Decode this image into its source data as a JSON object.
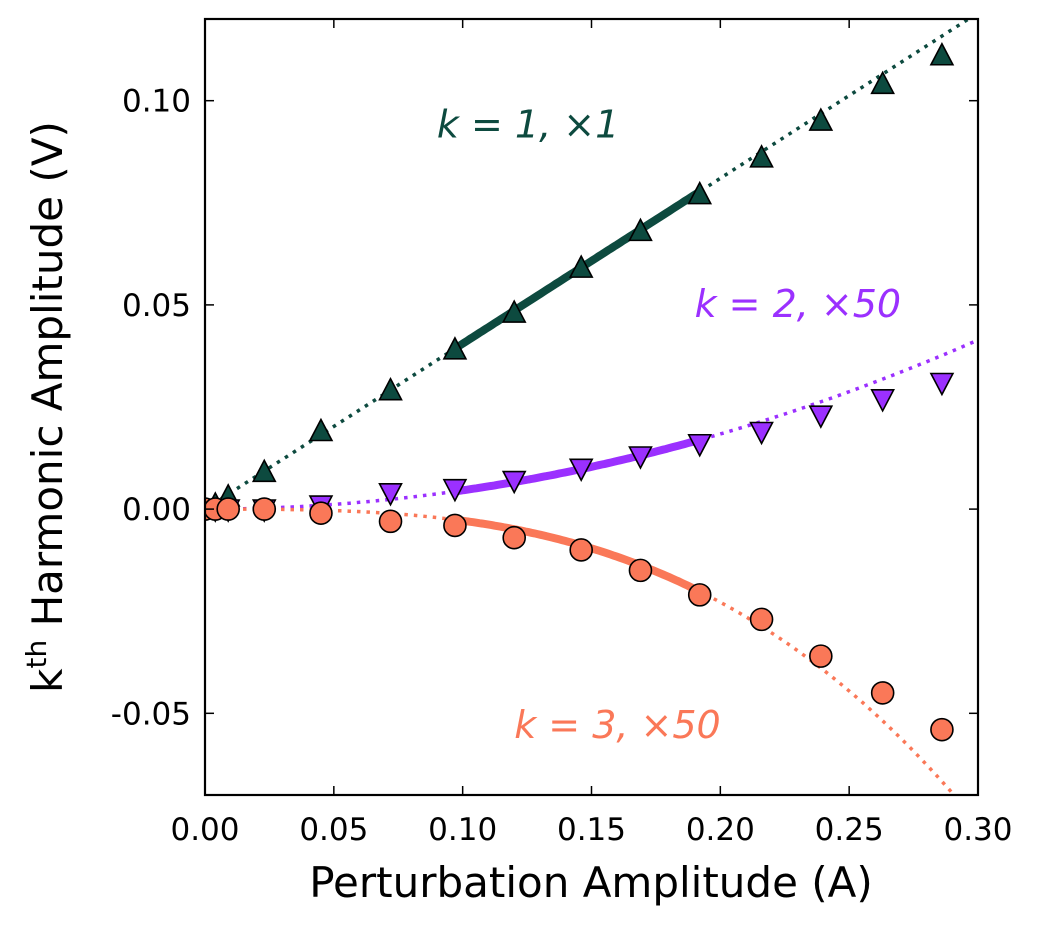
{
  "chart_data": {
    "type": "scatter",
    "xlabel": "Perturbation Amplitude (A)",
    "ylabel": {
      "main": "k",
      "sup": "th",
      "rest": " Harmonic Amplitude (V)"
    },
    "xlim": [
      0.0,
      0.3
    ],
    "ylim": [
      -0.07,
      0.12
    ],
    "xticks": [
      0.0,
      0.05,
      0.1,
      0.15,
      0.2,
      0.25,
      0.3
    ],
    "xtick_labels": [
      "0.00",
      "0.05",
      "0.10",
      "0.15",
      "0.20",
      "0.25",
      "0.30"
    ],
    "yticks": [
      -0.05,
      0.0,
      0.05,
      0.1
    ],
    "ytick_labels": [
      "-0.05",
      "0.00",
      "0.05",
      "0.10"
    ],
    "grid": false,
    "series": [
      {
        "name": "k = 1, ×1",
        "color": "#0d4a3f",
        "marker": "triangle-up",
        "x": [
          0.0,
          0.004,
          0.009,
          0.023,
          0.045,
          0.072,
          0.097,
          0.12,
          0.146,
          0.169,
          0.192,
          0.216,
          0.239,
          0.263,
          0.286
        ],
        "y": [
          0.0,
          0.001,
          0.003,
          0.009,
          0.019,
          0.029,
          0.039,
          0.048,
          0.059,
          0.068,
          0.077,
          0.086,
          0.095,
          0.104,
          0.111
        ],
        "fit": {
          "form": "linear",
          "coef": [
            0.0,
            0.405
          ],
          "solid_range": [
            0.097,
            0.192
          ],
          "dotted_range": [
            0.0,
            0.3
          ]
        }
      },
      {
        "name": "k = 2, ×50",
        "color": "#9b30ff",
        "marker": "triangle-down",
        "x": [
          0.0,
          0.004,
          0.009,
          0.023,
          0.045,
          0.072,
          0.097,
          0.12,
          0.146,
          0.169,
          0.192,
          0.216,
          0.239,
          0.263,
          0.286
        ],
        "y": [
          0.0,
          0.0,
          0.0,
          0.0,
          0.001,
          0.004,
          0.005,
          0.007,
          0.01,
          0.013,
          0.016,
          0.019,
          0.023,
          0.027,
          0.031
        ],
        "fit": {
          "form": "quadratic",
          "coef": [
            0.0,
            0.0,
            0.46
          ],
          "solid_range": [
            0.097,
            0.192
          ],
          "dotted_range": [
            0.0,
            0.3
          ]
        }
      },
      {
        "name": "k = 3, ×50",
        "color": "#fa7858",
        "marker": "circle",
        "x": [
          0.0,
          0.004,
          0.009,
          0.023,
          0.045,
          0.072,
          0.097,
          0.12,
          0.146,
          0.169,
          0.192,
          0.216,
          0.239,
          0.263,
          0.286
        ],
        "y": [
          0.0,
          0.0,
          0.0,
          0.0,
          -0.001,
          -0.003,
          -0.004,
          -0.007,
          -0.01,
          -0.015,
          -0.021,
          -0.027,
          -0.036,
          -0.045,
          -0.054
        ],
        "fit": {
          "form": "cubic",
          "coef": [
            0.0,
            0.0,
            0.0,
            -2.85
          ],
          "solid_range": [
            0.097,
            0.192
          ],
          "dotted_range": [
            0.0,
            0.3
          ]
        }
      }
    ],
    "annotations": [
      {
        "text": "k = 1, ×1",
        "x": 0.09,
        "y": 0.091,
        "color": "#0d4a3f"
      },
      {
        "text": "k = 2, ×50",
        "x": 0.19,
        "y": 0.047,
        "color": "#9b30ff"
      },
      {
        "text": "k = 3, ×50",
        "x": 0.12,
        "y": -0.056,
        "color": "#fa7858"
      }
    ]
  }
}
